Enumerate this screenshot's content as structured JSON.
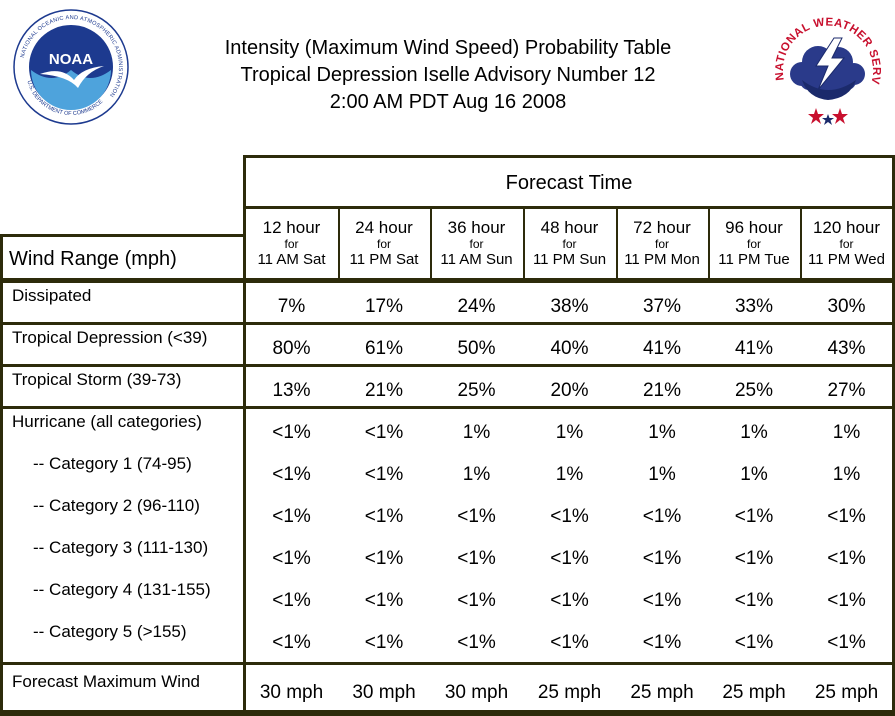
{
  "title": {
    "line1": "Intensity (Maximum Wind Speed) Probability Table",
    "line2": "Tropical Depression Iselle Advisory Number 12",
    "line3": "2:00 AM PDT Aug 16 2008"
  },
  "logos": {
    "noaa": {
      "text": "NOAA",
      "ring_text": "NATIONAL OCEANIC AND ATMOSPHERIC ADMINISTRATION",
      "bottom_text": "U.S. DEPARTMENT OF COMMERCE",
      "icon": "noaa-logo"
    },
    "nws": {
      "ring_text": "NATIONAL WEATHER SERVICE",
      "icon": "nws-logo"
    }
  },
  "table": {
    "forecast_time_label": "Forecast Time",
    "wind_range_label": "Wind Range (mph)",
    "columns": [
      {
        "hour": "12 hour",
        "for": "for",
        "time": "11 AM Sat"
      },
      {
        "hour": "24 hour",
        "for": "for",
        "time": "11 PM Sat"
      },
      {
        "hour": "36 hour",
        "for": "for",
        "time": "11 AM Sun"
      },
      {
        "hour": "48 hour",
        "for": "for",
        "time": "11 PM Sun"
      },
      {
        "hour": "72 hour",
        "for": "for",
        "time": "11 PM Mon"
      },
      {
        "hour": "96 hour",
        "for": "for",
        "time": "11 PM Tue"
      },
      {
        "hour": "120 hour",
        "for": "for",
        "time": "11 PM Wed"
      }
    ],
    "rows": [
      {
        "label": "Dissipated",
        "values": [
          "7%",
          "17%",
          "24%",
          "38%",
          "37%",
          "33%",
          "30%"
        ]
      },
      {
        "label": "Tropical Depression (<39)",
        "values": [
          "80%",
          "61%",
          "50%",
          "40%",
          "41%",
          "41%",
          "43%"
        ]
      },
      {
        "label": "Tropical Storm (39-73)",
        "values": [
          "13%",
          "21%",
          "25%",
          "20%",
          "21%",
          "25%",
          "27%"
        ]
      },
      {
        "label": "Hurricane (all categories)",
        "values": [
          "<1%",
          "<1%",
          "1%",
          "1%",
          "1%",
          "1%",
          "1%"
        ]
      },
      {
        "label": "-- Category 1 (74-95)",
        "values": [
          "<1%",
          "<1%",
          "1%",
          "1%",
          "1%",
          "1%",
          "1%"
        ]
      },
      {
        "label": "-- Category 2 (96-110)",
        "values": [
          "<1%",
          "<1%",
          "<1%",
          "<1%",
          "<1%",
          "<1%",
          "<1%"
        ]
      },
      {
        "label": "-- Category 3 (111-130)",
        "values": [
          "<1%",
          "<1%",
          "<1%",
          "<1%",
          "<1%",
          "<1%",
          "<1%"
        ]
      },
      {
        "label": "-- Category 4 (131-155)",
        "values": [
          "<1%",
          "<1%",
          "<1%",
          "<1%",
          "<1%",
          "<1%",
          "<1%"
        ]
      },
      {
        "label": "-- Category 5 (>155)",
        "values": [
          "<1%",
          "<1%",
          "<1%",
          "<1%",
          "<1%",
          "<1%",
          "<1%"
        ]
      },
      {
        "label": "Forecast Maximum Wind",
        "values": [
          "30 mph",
          "30 mph",
          "30 mph",
          "25 mph",
          "25 mph",
          "25 mph",
          "25 mph"
        ]
      }
    ]
  },
  "colors": {
    "border": "#2d2b0b",
    "noaa_blue": "#1d3a8f",
    "nws_red": "#c8102e",
    "nws_navy": "#1b2a6b"
  }
}
